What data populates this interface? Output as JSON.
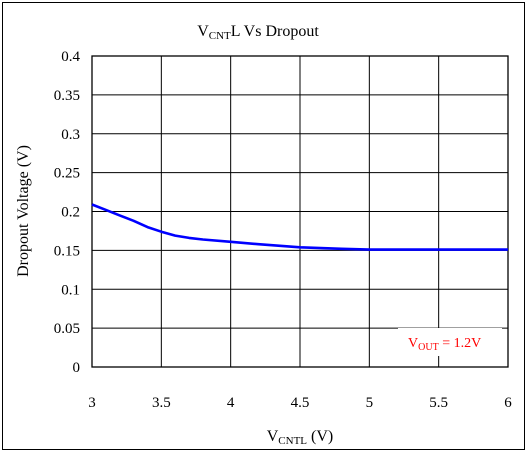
{
  "chart_data": {
    "type": "line",
    "title": {
      "main": "V",
      "sub": "CNT",
      "rest": "L Vs Dropout"
    },
    "xlabel": {
      "main": "V",
      "sub": "CNTL",
      "rest": " (V)"
    },
    "ylabel": "Dropout Voltage (V)",
    "xlim": [
      3,
      6
    ],
    "ylim": [
      0,
      0.4
    ],
    "xticks": [
      "3",
      "3.5",
      "4",
      "4.5",
      "5",
      "5.5",
      "6"
    ],
    "yticks": [
      "0",
      "0.05",
      "0.1",
      "0.15",
      "0.2",
      "0.25",
      "0.3",
      "0.35",
      "0.4"
    ],
    "grid": true,
    "series": [
      {
        "x": [
          3.0,
          3.1,
          3.2,
          3.3,
          3.4,
          3.5,
          3.6,
          3.7,
          3.8,
          4.0,
          4.2,
          4.5,
          4.8,
          5.0,
          5.5,
          6.0
        ],
        "y": [
          0.209,
          0.202,
          0.195,
          0.188,
          0.18,
          0.174,
          0.169,
          0.166,
          0.164,
          0.161,
          0.158,
          0.154,
          0.152,
          0.151,
          0.151,
          0.151
        ],
        "color": "#0000ff"
      }
    ],
    "annotation": {
      "main": "V",
      "sub": "OUT",
      "rest": " = 1.2V",
      "color": "#ff0000"
    }
  }
}
